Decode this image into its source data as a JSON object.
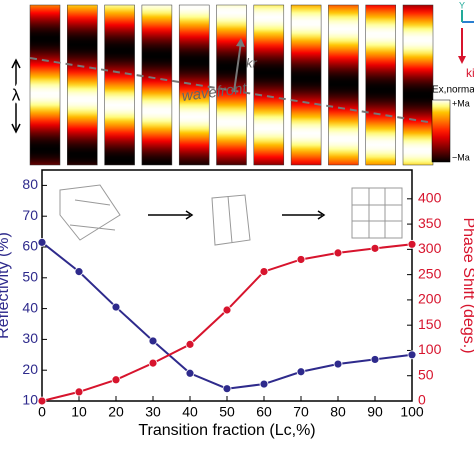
{
  "figure_panel": {
    "lambda": "λ",
    "kr": "kr",
    "wavefront": "wavefront",
    "colorbar_title": "Ex,norma",
    "colorbar_max": "+Ma",
    "colorbar_min": "−Ma",
    "axis_y": "Y",
    "ki": "ki"
  },
  "chart_data": {
    "type": "line",
    "x": [
      0,
      10,
      20,
      30,
      40,
      50,
      60,
      70,
      80,
      90,
      100
    ],
    "series": [
      {
        "name": "Reflectivity",
        "color": "#2e2a8c",
        "values": [
          61.5,
          52,
          40.5,
          29.5,
          19,
          14,
          15.5,
          19.5,
          22,
          23.5,
          25
        ]
      },
      {
        "name": "Phase Shift",
        "color": "#d7142d",
        "axis": "y2",
        "values": [
          0,
          18,
          42,
          75,
          112,
          180,
          256,
          280,
          293,
          302,
          310
        ]
      }
    ],
    "xlabel": "Transition fraction (Lc,%)",
    "ylabel": "Reflectivity (%)",
    "y2label": "Phase Shift (degs.)",
    "xlim": [
      0,
      100
    ],
    "xticks": [
      0,
      10,
      20,
      30,
      40,
      50,
      60,
      70,
      80,
      90,
      100
    ],
    "ylim": [
      10,
      85
    ],
    "yticks": [
      10,
      20,
      30,
      40,
      50,
      60,
      70,
      80
    ],
    "y2lim": [
      0,
      457
    ],
    "y2ticks": [
      0,
      50,
      100,
      150,
      200,
      250,
      300,
      350,
      400
    ]
  }
}
